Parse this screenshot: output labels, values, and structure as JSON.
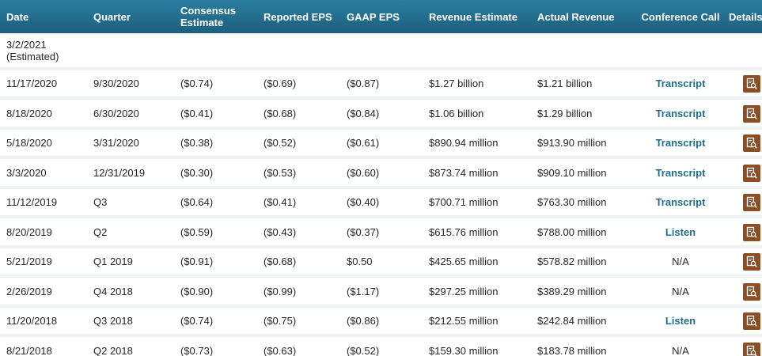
{
  "headers": {
    "date": "Date",
    "quarter": "Quarter",
    "consensus_line1": "Consensus",
    "consensus_line2": "Estimate",
    "reported_eps": "Reported EPS",
    "gaap_eps": "GAAP EPS",
    "revenue_estimate": "Revenue Estimate",
    "actual_revenue": "Actual Revenue",
    "conference_call": "Conference Call",
    "details": "Details"
  },
  "upcoming": {
    "date_line1": "3/2/2021",
    "date_line2": "(Estimated)"
  },
  "rows": [
    {
      "date": "11/17/2020",
      "quarter": "9/30/2020",
      "consensus": "($0.74)",
      "reported": "($0.69)",
      "gaap": "($0.87)",
      "rev_est": "$1.27 billion",
      "rev_actual": "$1.21 billion",
      "call": "Transcript",
      "call_link": true
    },
    {
      "date": "8/18/2020",
      "quarter": "6/30/2020",
      "consensus": "($0.41)",
      "reported": "($0.68)",
      "gaap": "($0.84)",
      "rev_est": "$1.06 billion",
      "rev_actual": "$1.29 billion",
      "call": "Transcript",
      "call_link": true
    },
    {
      "date": "5/18/2020",
      "quarter": "3/31/2020",
      "consensus": "($0.38)",
      "reported": "($0.52)",
      "gaap": "($0.61)",
      "rev_est": "$890.94 million",
      "rev_actual": "$913.90 million",
      "call": "Transcript",
      "call_link": true
    },
    {
      "date": "3/3/2020",
      "quarter": "12/31/2019",
      "consensus": "($0.30)",
      "reported": "($0.53)",
      "gaap": "($0.60)",
      "rev_est": "$873.74 million",
      "rev_actual": "$909.10 million",
      "call": "Transcript",
      "call_link": true
    },
    {
      "date": "11/12/2019",
      "quarter": "Q3",
      "consensus": "($0.64)",
      "reported": "($0.41)",
      "gaap": "($0.40)",
      "rev_est": "$700.71 million",
      "rev_actual": "$763.30 million",
      "call": "Transcript",
      "call_link": true
    },
    {
      "date": "8/20/2019",
      "quarter": "Q2",
      "consensus": "($0.59)",
      "reported": "($0.43)",
      "gaap": "($0.37)",
      "rev_est": "$615.76 million",
      "rev_actual": "$788.00 million",
      "call": "Listen",
      "call_link": true
    },
    {
      "date": "5/21/2019",
      "quarter": "Q1 2019",
      "consensus": "($0.91)",
      "reported": "($0.68)",
      "gaap": "$0.50",
      "rev_est": "$425.65 million",
      "rev_actual": "$578.82 million",
      "call": "N/A",
      "call_link": false
    },
    {
      "date": "2/26/2019",
      "quarter": "Q4 2018",
      "consensus": "($0.90)",
      "reported": "($0.99)",
      "gaap": "($1.17)",
      "rev_est": "$297.25 million",
      "rev_actual": "$389.29 million",
      "call": "N/A",
      "call_link": false
    },
    {
      "date": "11/20/2018",
      "quarter": "Q3 2018",
      "consensus": "($0.74)",
      "reported": "($0.75)",
      "gaap": "($0.86)",
      "rev_est": "$212.55 million",
      "rev_actual": "$242.84 million",
      "call": "Listen",
      "call_link": true
    },
    {
      "date": "8/21/2018",
      "quarter": "Q2 2018",
      "consensus": "($0.73)",
      "reported": "($0.63)",
      "gaap": "($0.52)",
      "rev_est": "$159.30 million",
      "rev_actual": "$183.78 million",
      "call": "N/A",
      "call_link": false
    }
  ],
  "icons": {
    "details": "document-search-icon"
  },
  "colors": {
    "header_bg": "#1c5f7e",
    "link": "#1f6f8b",
    "details_button": "#8a4f25"
  }
}
